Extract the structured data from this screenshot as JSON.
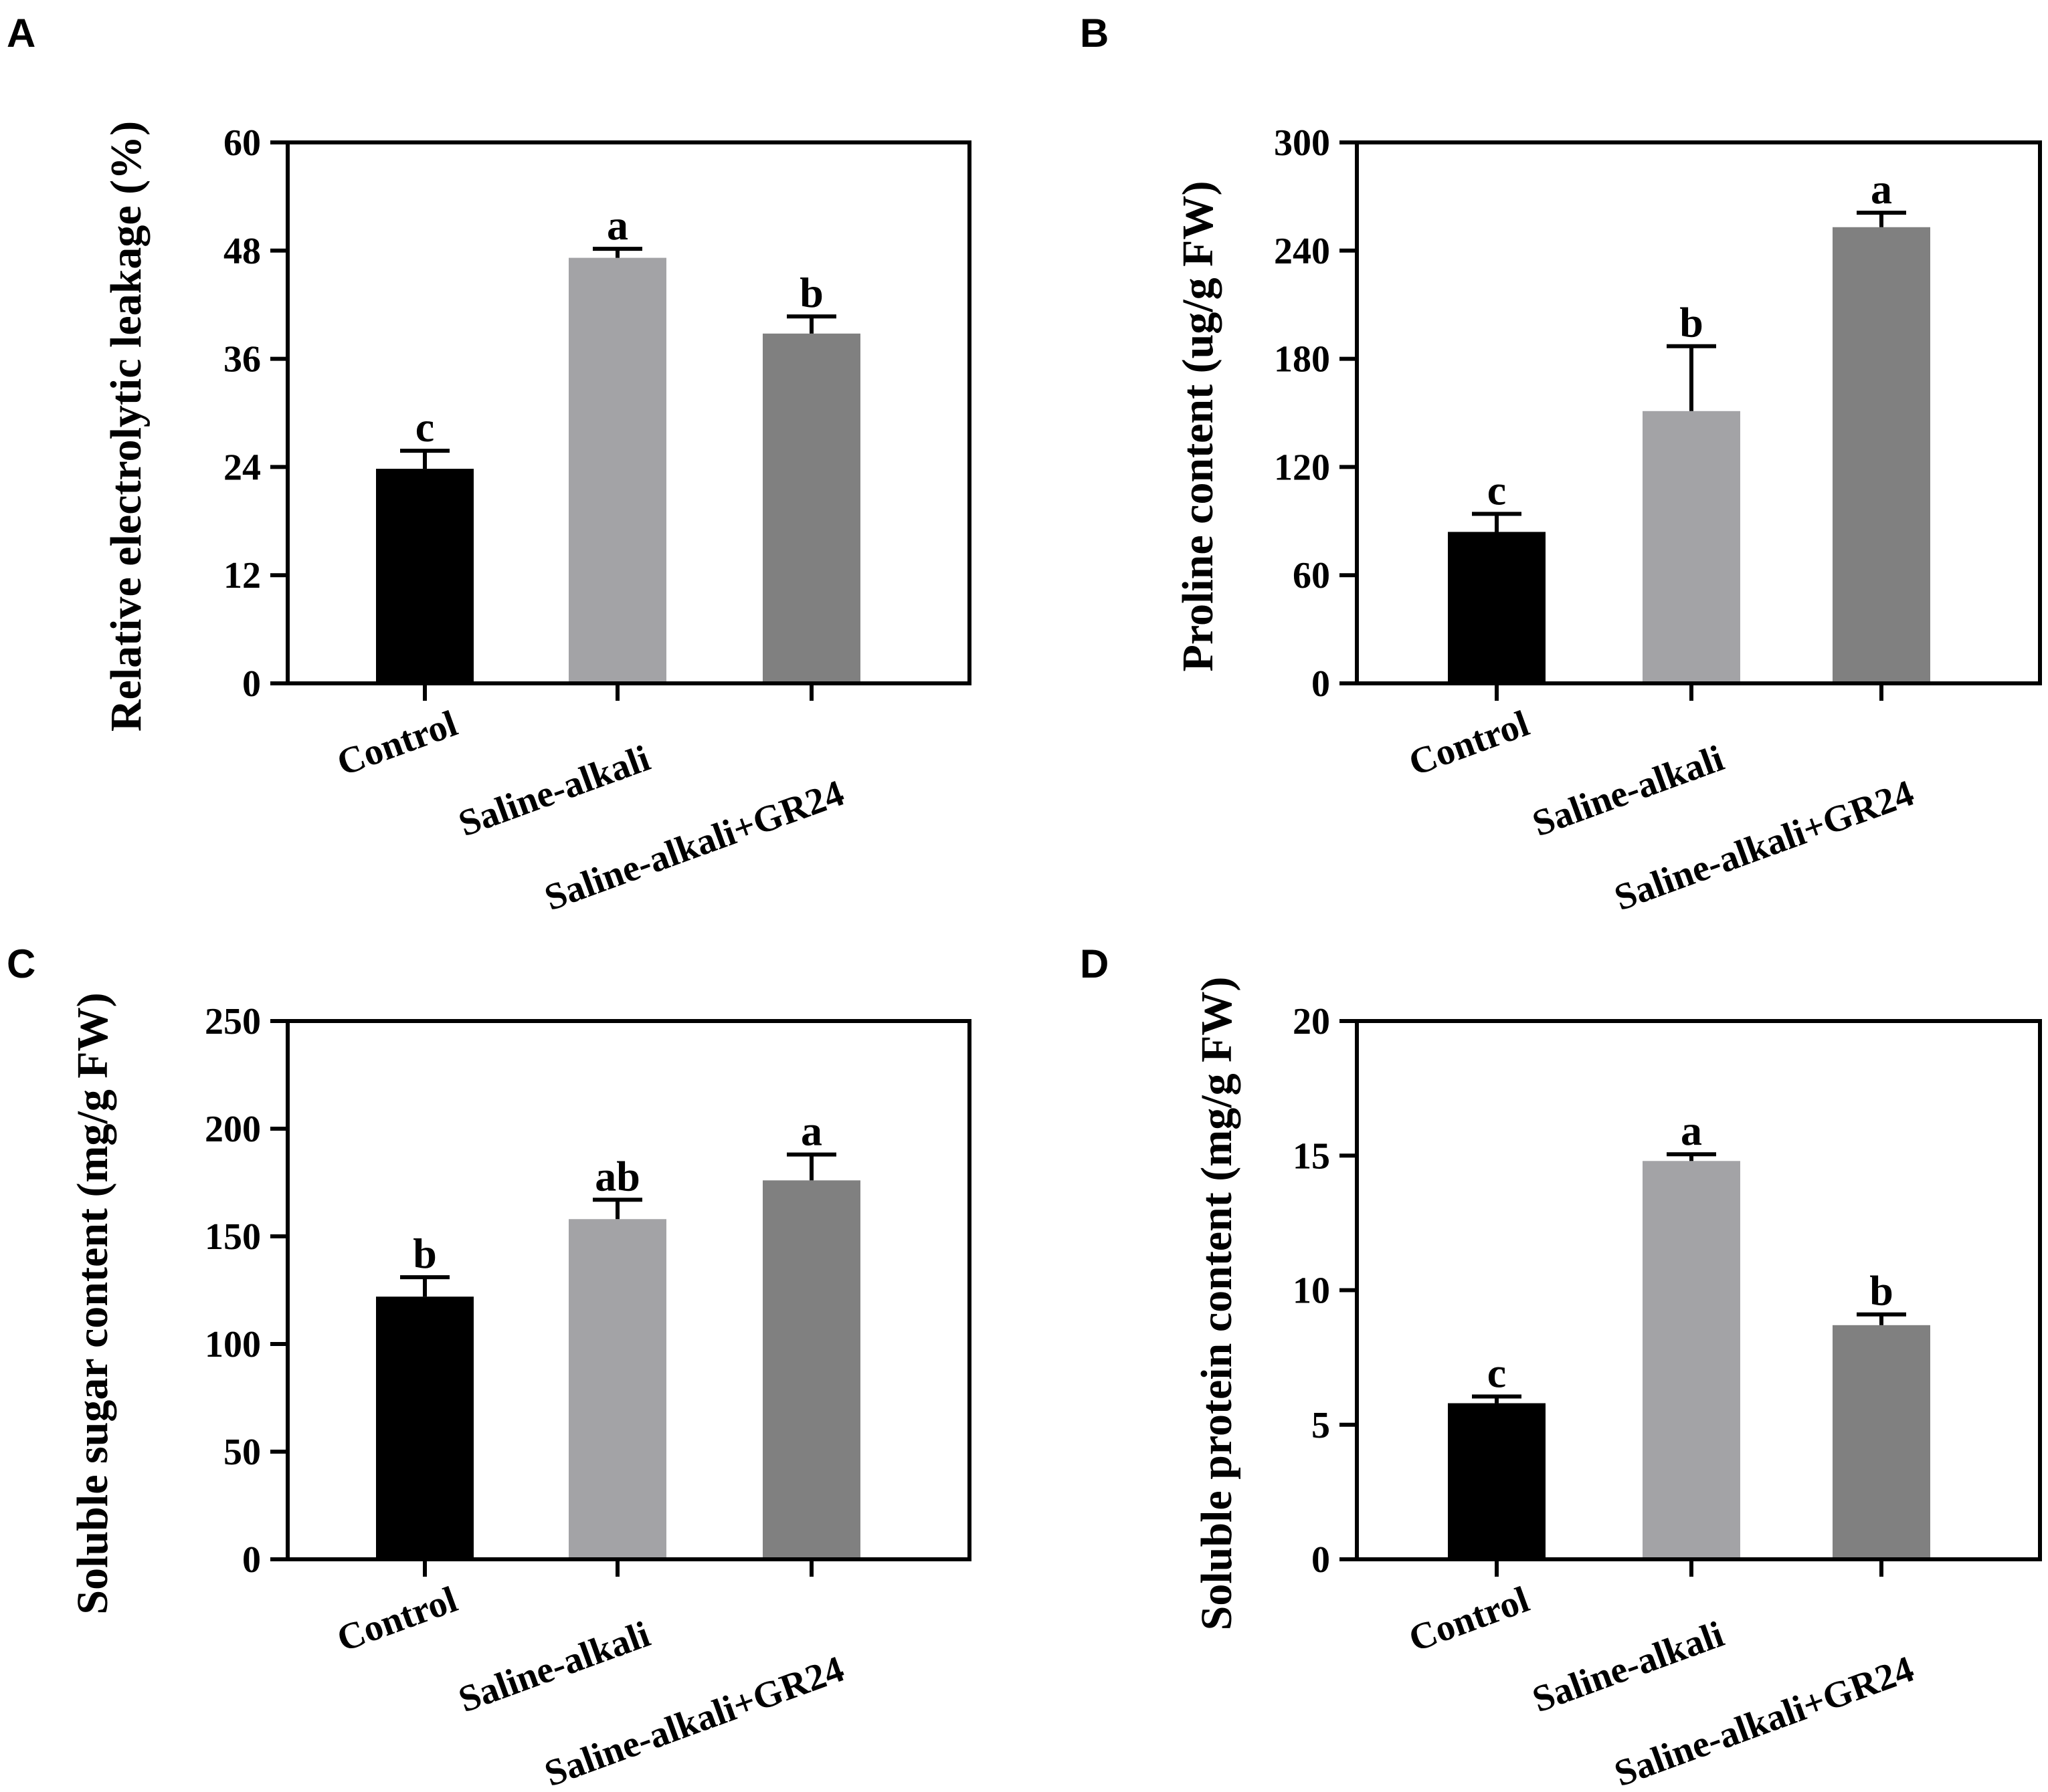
{
  "figure": {
    "panels": [
      "A",
      "B",
      "C",
      "D"
    ],
    "categories": [
      "Control",
      "Saline-alkali",
      "Saline-alkali+GR24"
    ],
    "bar_colors": [
      "#000000",
      "#a3a3a6",
      "#808080"
    ]
  },
  "chart_data": [
    {
      "panel": "A",
      "type": "bar",
      "title": "",
      "xlabel": "",
      "ylabel": "Relative electrolytic leakage (%)",
      "ylim": [
        0,
        60
      ],
      "yticks": [
        "0",
        "12",
        "24",
        "36",
        "48",
        "60"
      ],
      "ytick_values": [
        0,
        12,
        24,
        36,
        48,
        60
      ],
      "categories": [
        "Control",
        "Saline-alkali",
        "Saline-alkali+GR24"
      ],
      "values": [
        23.8,
        47.2,
        38.8
      ],
      "errors": [
        2.0,
        1.0,
        1.9
      ],
      "letters": [
        "c",
        "a",
        "b"
      ]
    },
    {
      "panel": "B",
      "type": "bar",
      "title": "",
      "xlabel": "",
      "ylabel": "Proline content (ug/g FW)",
      "ylim": [
        0,
        300
      ],
      "yticks": [
        "0",
        "60",
        "120",
        "180",
        "240",
        "300"
      ],
      "ytick_values": [
        0,
        60,
        120,
        180,
        240,
        300
      ],
      "categories": [
        "Control",
        "Saline-alkali",
        "Saline-alkali+GR24"
      ],
      "values": [
        84,
        151,
        253
      ],
      "errors": [
        10,
        36,
        8
      ],
      "letters": [
        "c",
        "b",
        "a"
      ]
    },
    {
      "panel": "C",
      "type": "bar",
      "title": "",
      "xlabel": "",
      "ylabel": "Soluble sugar content (mg/g FW)",
      "ylim": [
        0,
        250
      ],
      "yticks": [
        "0",
        "50",
        "100",
        "150",
        "200",
        "250"
      ],
      "ytick_values": [
        0,
        50,
        100,
        150,
        200,
        250
      ],
      "categories": [
        "Control",
        "Saline-alkali",
        "Saline-alkali+GR24"
      ],
      "values": [
        122,
        158,
        176
      ],
      "errors": [
        9,
        9,
        12
      ],
      "letters": [
        "b",
        "ab",
        "a"
      ]
    },
    {
      "panel": "D",
      "type": "bar",
      "title": "",
      "xlabel": "",
      "ylabel": "Soluble protein content (mg/g FW)",
      "ylim": [
        0,
        20
      ],
      "yticks": [
        "0",
        "5",
        "10",
        "15",
        "20"
      ],
      "ytick_values": [
        0,
        5,
        10,
        15,
        20
      ],
      "categories": [
        "Control",
        "Saline-alkali",
        "Saline-alkali+GR24"
      ],
      "values": [
        5.8,
        14.8,
        8.7
      ],
      "errors": [
        0.25,
        0.25,
        0.4
      ],
      "letters": [
        "c",
        "a",
        "b"
      ]
    }
  ]
}
